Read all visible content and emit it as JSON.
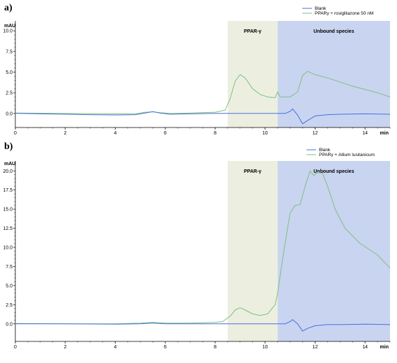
{
  "chart_data": [
    {
      "panel_label": "a)",
      "type": "line",
      "ylabel": "mAU",
      "xlabel": "min",
      "xlim": [
        0,
        15
      ],
      "ylim": [
        -1.7,
        11.2
      ],
      "xticks": [
        0,
        2,
        4,
        6,
        8,
        10,
        12,
        14
      ],
      "yticks": [
        0.0,
        2.5,
        5.0,
        7.5,
        10.0
      ],
      "ytick_labels": [
        "0.0",
        "2.5",
        "5.0",
        "7.5",
        "10.0"
      ],
      "regions": [
        {
          "label": "PPAR-γ",
          "x0": 8.5,
          "x1": 10.5,
          "color": "#ecefe0"
        },
        {
          "label": "Unbound species",
          "x0": 10.5,
          "x1": 15.0,
          "color": "#c9d4f0"
        }
      ],
      "series": [
        {
          "name": "Blank",
          "color": "#4a6fdc",
          "x": [
            0,
            1,
            2,
            3,
            4,
            4.8,
            5.2,
            5.5,
            5.8,
            6.2,
            7,
            8,
            8.5,
            9,
            10,
            10.5,
            10.8,
            11.0,
            11.1,
            11.3,
            11.5,
            11.7,
            12,
            12.5,
            13,
            14,
            15
          ],
          "y": [
            0.02,
            -0.05,
            -0.1,
            -0.15,
            -0.18,
            -0.15,
            0.05,
            0.22,
            0.05,
            -0.1,
            -0.05,
            0.0,
            0.0,
            0.0,
            0.0,
            0.0,
            0.0,
            0.25,
            0.55,
            -0.2,
            -1.25,
            -0.85,
            -0.3,
            -0.15,
            -0.1,
            -0.05,
            -0.1
          ]
        },
        {
          "name": "PPARγ + rosiglitazone 50 nM",
          "color": "#7fc07f",
          "x": [
            0,
            2,
            4,
            4.8,
            5.2,
            5.5,
            5.8,
            6.2,
            7,
            8,
            8.4,
            8.6,
            8.8,
            9.0,
            9.2,
            9.5,
            9.8,
            10.1,
            10.4,
            10.5,
            10.6,
            11.0,
            11.3,
            11.5,
            11.7,
            12.0,
            12.5,
            13,
            13.5,
            14,
            14.5,
            15
          ],
          "y": [
            0.05,
            0.0,
            -0.05,
            -0.05,
            0.15,
            0.2,
            0.1,
            0.0,
            0.05,
            0.15,
            0.4,
            1.8,
            3.9,
            4.7,
            4.3,
            3.0,
            2.3,
            2.0,
            1.9,
            2.6,
            2.0,
            2.0,
            2.6,
            4.6,
            5.1,
            4.7,
            4.3,
            3.8,
            3.3,
            2.9,
            2.5,
            2.0
          ]
        }
      ]
    },
    {
      "panel_label": "b)",
      "type": "line",
      "ylabel": "mAU",
      "xlabel": "min",
      "xlim": [
        0,
        15
      ],
      "ylim": [
        -2.3,
        21.3
      ],
      "xticks": [
        0,
        2,
        4,
        6,
        8,
        10,
        12,
        14
      ],
      "yticks": [
        0.0,
        2.5,
        5.0,
        7.5,
        10.0,
        12.5,
        15.0,
        17.5,
        20.0
      ],
      "ytick_labels": [
        "0.0",
        "2.5",
        "5.0",
        "7.5",
        "10.0",
        "12.5",
        "15.0",
        "17.5",
        "20.0"
      ],
      "regions": [
        {
          "label": "PPAR-γ",
          "x0": 8.5,
          "x1": 10.5,
          "color": "#ecefe0"
        },
        {
          "label": "Unbound species",
          "x0": 10.5,
          "x1": 15.0,
          "color": "#c9d4f0"
        }
      ],
      "series": [
        {
          "name": "Blank",
          "color": "#4a6fdc",
          "x": [
            0,
            2,
            4,
            5,
            5.5,
            6,
            7,
            8,
            8.5,
            9,
            10,
            10.8,
            11.0,
            11.1,
            11.3,
            11.5,
            11.7,
            12,
            12.5,
            13,
            14,
            15
          ],
          "y": [
            0.0,
            0.0,
            -0.05,
            0.0,
            0.1,
            0.0,
            0.0,
            0.0,
            0.0,
            0.0,
            0.0,
            0.0,
            0.3,
            0.55,
            0.0,
            -0.95,
            -0.6,
            -0.25,
            -0.1,
            -0.1,
            -0.05,
            -0.1
          ]
        },
        {
          "name": "PPARγ + Allium lusitanicum",
          "color": "#7fc07f",
          "x": [
            0,
            2,
            4,
            5,
            5.5,
            6,
            7,
            8,
            8.3,
            8.6,
            8.8,
            9.0,
            9.2,
            9.5,
            9.8,
            10.1,
            10.4,
            10.5,
            10.7,
            10.9,
            11.0,
            11.2,
            11.4,
            11.6,
            11.8,
            11.95,
            12.1,
            12.3,
            12.5,
            12.8,
            13.2,
            13.8,
            14.5,
            15
          ],
          "y": [
            0.05,
            0.0,
            0.0,
            0.1,
            0.2,
            0.1,
            0.1,
            0.2,
            0.3,
            1.0,
            1.8,
            2.1,
            1.8,
            1.3,
            1.1,
            1.3,
            2.5,
            4.0,
            8.5,
            12.5,
            14.5,
            15.5,
            15.6,
            18.0,
            20.0,
            19.4,
            19.8,
            19.7,
            18.0,
            15.0,
            12.5,
            10.5,
            9.0,
            7.3
          ]
        }
      ]
    }
  ]
}
